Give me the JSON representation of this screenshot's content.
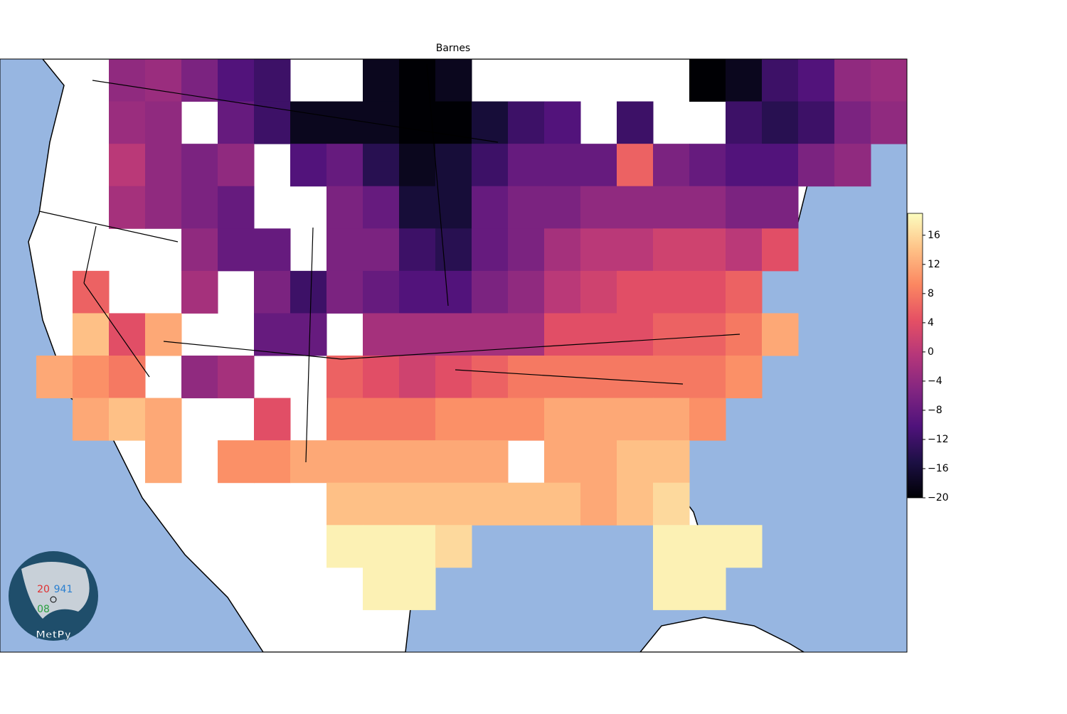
{
  "map": {
    "title": "Barnes",
    "colorbar": {
      "lim": [
        -20,
        19
      ],
      "ticks": [
        {
          "value": -20,
          "label": "−20"
        },
        {
          "value": -16,
          "label": "−16"
        },
        {
          "value": -12,
          "label": "−12"
        },
        {
          "value": -8,
          "label": "−8"
        },
        {
          "value": -4,
          "label": "−4"
        },
        0,
        4,
        8,
        12,
        16
      ],
      "colormap": [
        "#000004",
        "#1c1044",
        "#4f127b",
        "#812581",
        "#b5367a",
        "#e55064",
        "#fb8761",
        "#fec287",
        "#fcfdbf"
      ]
    },
    "grid": {
      "values": [
        [
          null,
          null,
          null,
          -4,
          -3,
          -6,
          -10,
          -12,
          null,
          null,
          -18,
          -20,
          -18,
          null,
          null,
          null,
          null,
          null,
          null,
          -20,
          -18,
          -12,
          -10,
          -4,
          -3
        ],
        [
          null,
          null,
          null,
          -3,
          -4,
          null,
          -8,
          -12,
          -18,
          -18,
          -18,
          -20,
          -20,
          -16,
          -12,
          -10,
          null,
          -12,
          null,
          null,
          -12,
          -14,
          -12,
          -6,
          -4
        ],
        [
          null,
          null,
          null,
          0,
          -4,
          -6,
          -4,
          null,
          -10,
          -8,
          -14,
          -18,
          -16,
          -12,
          -8,
          -8,
          -8,
          6,
          -6,
          -8,
          -10,
          -10,
          -6,
          -4,
          null
        ],
        [
          null,
          null,
          null,
          -2,
          -4,
          -6,
          -8,
          null,
          null,
          -6,
          -8,
          -16,
          -16,
          -8,
          -6,
          -6,
          -4,
          -4,
          -4,
          -4,
          -6,
          -6,
          null,
          null,
          null
        ],
        [
          null,
          null,
          null,
          null,
          null,
          -4,
          -8,
          -8,
          null,
          -6,
          -6,
          -12,
          -14,
          -8,
          -6,
          -2,
          0,
          0,
          2,
          2,
          0,
          4,
          null,
          null,
          null
        ],
        [
          null,
          null,
          6,
          null,
          null,
          -2,
          null,
          -6,
          -12,
          -6,
          -8,
          -10,
          -10,
          -6,
          -4,
          0,
          2,
          4,
          4,
          4,
          6,
          null,
          null,
          null,
          null
        ],
        [
          null,
          null,
          14,
          4,
          12,
          null,
          null,
          -8,
          -8,
          null,
          -2,
          -2,
          -2,
          -2,
          -2,
          4,
          4,
          4,
          6,
          6,
          8,
          12,
          null,
          null,
          null
        ],
        [
          null,
          12,
          10,
          8,
          null,
          -4,
          -2,
          null,
          null,
          6,
          4,
          2,
          4,
          6,
          8,
          8,
          8,
          8,
          8,
          8,
          10,
          null,
          null,
          null,
          null
        ],
        [
          null,
          null,
          12,
          14,
          12,
          null,
          null,
          4,
          null,
          8,
          8,
          8,
          10,
          10,
          10,
          12,
          12,
          12,
          12,
          10,
          null,
          null,
          null,
          null,
          null
        ],
        [
          null,
          null,
          null,
          null,
          12,
          null,
          10,
          10,
          12,
          12,
          12,
          12,
          12,
          12,
          null,
          12,
          12,
          14,
          14,
          null,
          null,
          null,
          null,
          null,
          null
        ],
        [
          null,
          null,
          null,
          null,
          null,
          null,
          null,
          null,
          null,
          14,
          14,
          14,
          14,
          14,
          14,
          14,
          12,
          14,
          16,
          null,
          null,
          null,
          null,
          null,
          null
        ],
        [
          null,
          null,
          null,
          null,
          null,
          null,
          null,
          null,
          null,
          18,
          18,
          18,
          16,
          null,
          null,
          null,
          null,
          null,
          18,
          18,
          18,
          null,
          null,
          null,
          null
        ],
        [
          null,
          null,
          null,
          null,
          null,
          null,
          null,
          null,
          null,
          null,
          18,
          18,
          null,
          null,
          null,
          null,
          null,
          null,
          18,
          18,
          null,
          null,
          null,
          null,
          null
        ],
        [
          null,
          null,
          null,
          null,
          null,
          null,
          null,
          null,
          null,
          null,
          null,
          null,
          null,
          null,
          null,
          null,
          null,
          null,
          null,
          null,
          null,
          null,
          null,
          null,
          null
        ]
      ]
    }
  },
  "logo": {
    "temperature": "20",
    "pressure": "941",
    "dewpoint": "08",
    "name": "MetPy"
  }
}
